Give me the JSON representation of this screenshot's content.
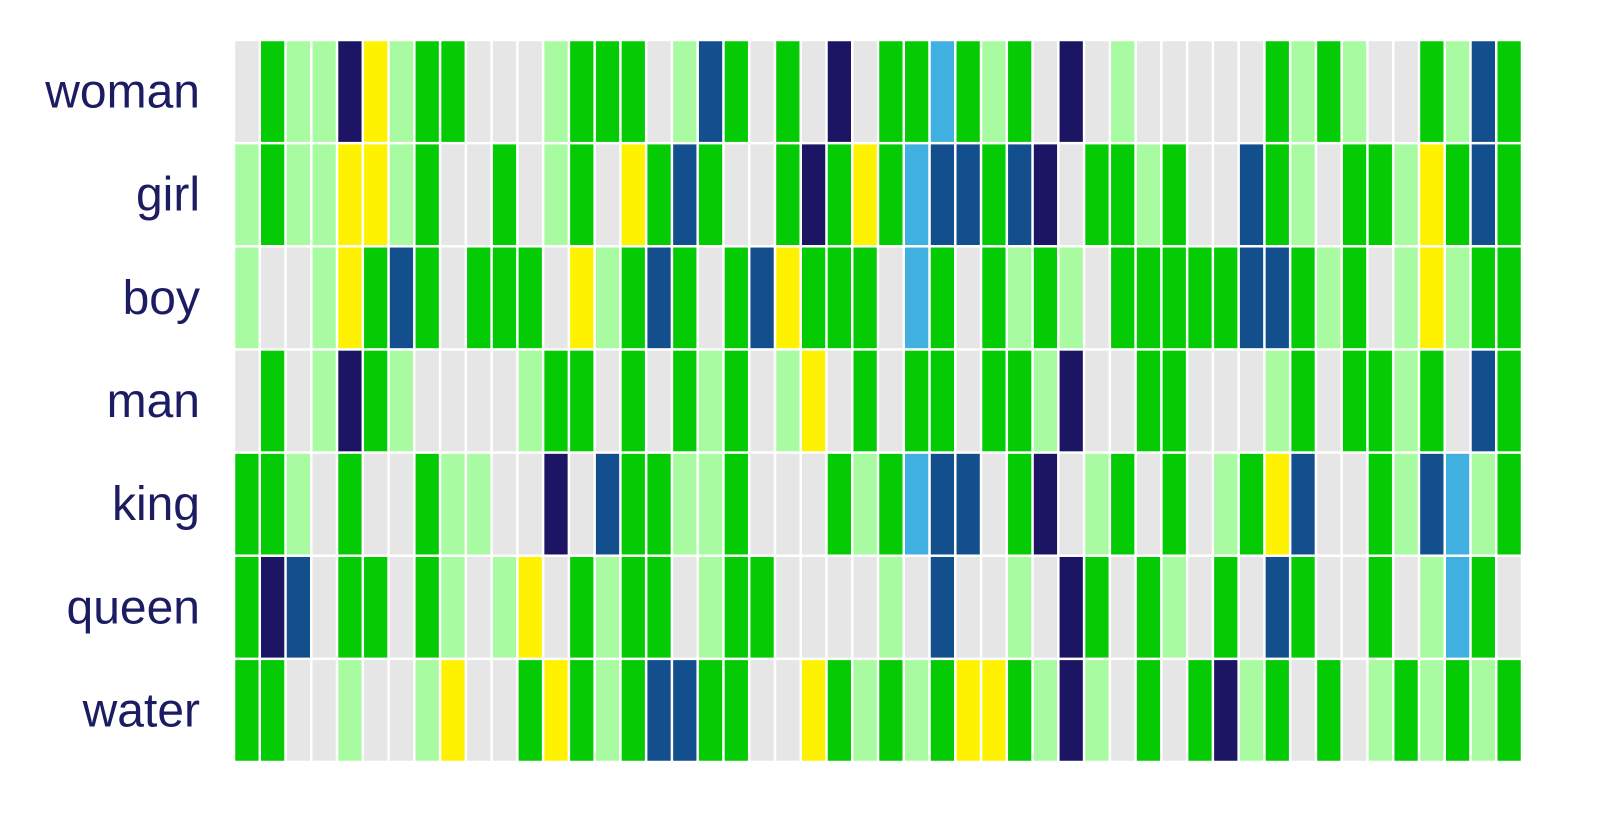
{
  "chart_data": {
    "type": "heatmap",
    "rows": [
      "woman",
      "girl",
      "boy",
      "man",
      "king",
      "queen",
      "water"
    ],
    "columns": 50,
    "color_scale": {
      "0": "#e6e6e6",
      "1": "#a8fba0",
      "2": "#05cb05",
      "3": "#fff200",
      "4": "#3fb0df",
      "5": "#134e8d",
      "6": "#1c1563"
    },
    "values": [
      "02116312200012220152020602242120601000002121002152",
      "12113312002012032520026232455256022120052102213252",
      "10013252022203125202532220420212102222255212013122",
      "02016210000122020212013020220221600220001202212052",
      "22102002110060522112000212455026012020123500215412",
      "26502202101302122012200001050010620210205200201420",
      "22001001300232125522003212123321610202612020121212"
    ]
  }
}
